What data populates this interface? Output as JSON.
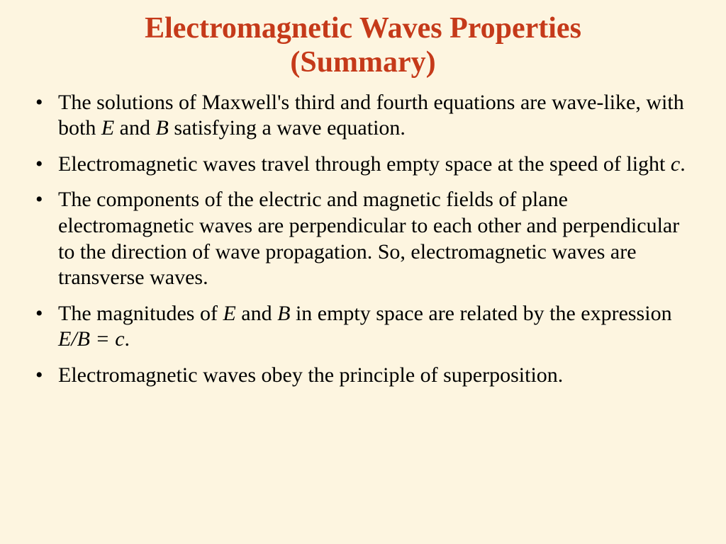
{
  "slide": {
    "background_color": "#fdf5e0",
    "title": {
      "line1": "Electromagnetic Waves Properties",
      "line2": "(Summary)",
      "color": "#c53a1a",
      "font_size_pt": 32,
      "font_weight": "bold",
      "align": "center"
    },
    "body": {
      "font_size_pt": 23,
      "text_color": "#000000",
      "bullet_char": "•",
      "bullets": [
        {
          "segments": [
            {
              "text": "The  solutions of Maxwell's  third  and  fourth  equations are wave-like, with both ",
              "italic": false
            },
            {
              "text": "E",
              "italic": true
            },
            {
              "text": " and ",
              "italic": false
            },
            {
              "text": "B",
              "italic": true
            },
            {
              "text": " satisfying a wave equation.",
              "italic": false
            }
          ]
        },
        {
          "segments": [
            {
              "text": "Electromagnetic waves travel through empty space at the speed of light ",
              "italic": false
            },
            {
              "text": "c",
              "italic": true
            },
            {
              "text": ".",
              "italic": false
            }
          ]
        },
        {
          "segments": [
            {
              "text": "The components of the electric and magnetic fields of plane electromagnetic waves are perpendicular to each other and perpendicular to the direction of wave propagation. So, electromagnetic waves are transverse waves.",
              "italic": false
            }
          ]
        },
        {
          "segments": [
            {
              "text": "The  magnitudes  of ",
              "italic": false
            },
            {
              "text": "E",
              "italic": true
            },
            {
              "text": " and  ",
              "italic": false
            },
            {
              "text": "B",
              "italic": true
            },
            {
              "text": " in  empty  space  are  related by  the  expression ",
              "italic": false
            },
            {
              "text": "E/B = c",
              "italic": true
            },
            {
              "text": ".",
              "italic": false
            }
          ]
        },
        {
          "segments": [
            {
              "text": "Electromagnetic waves obey the principle of superposition.",
              "italic": false
            }
          ]
        }
      ]
    }
  }
}
